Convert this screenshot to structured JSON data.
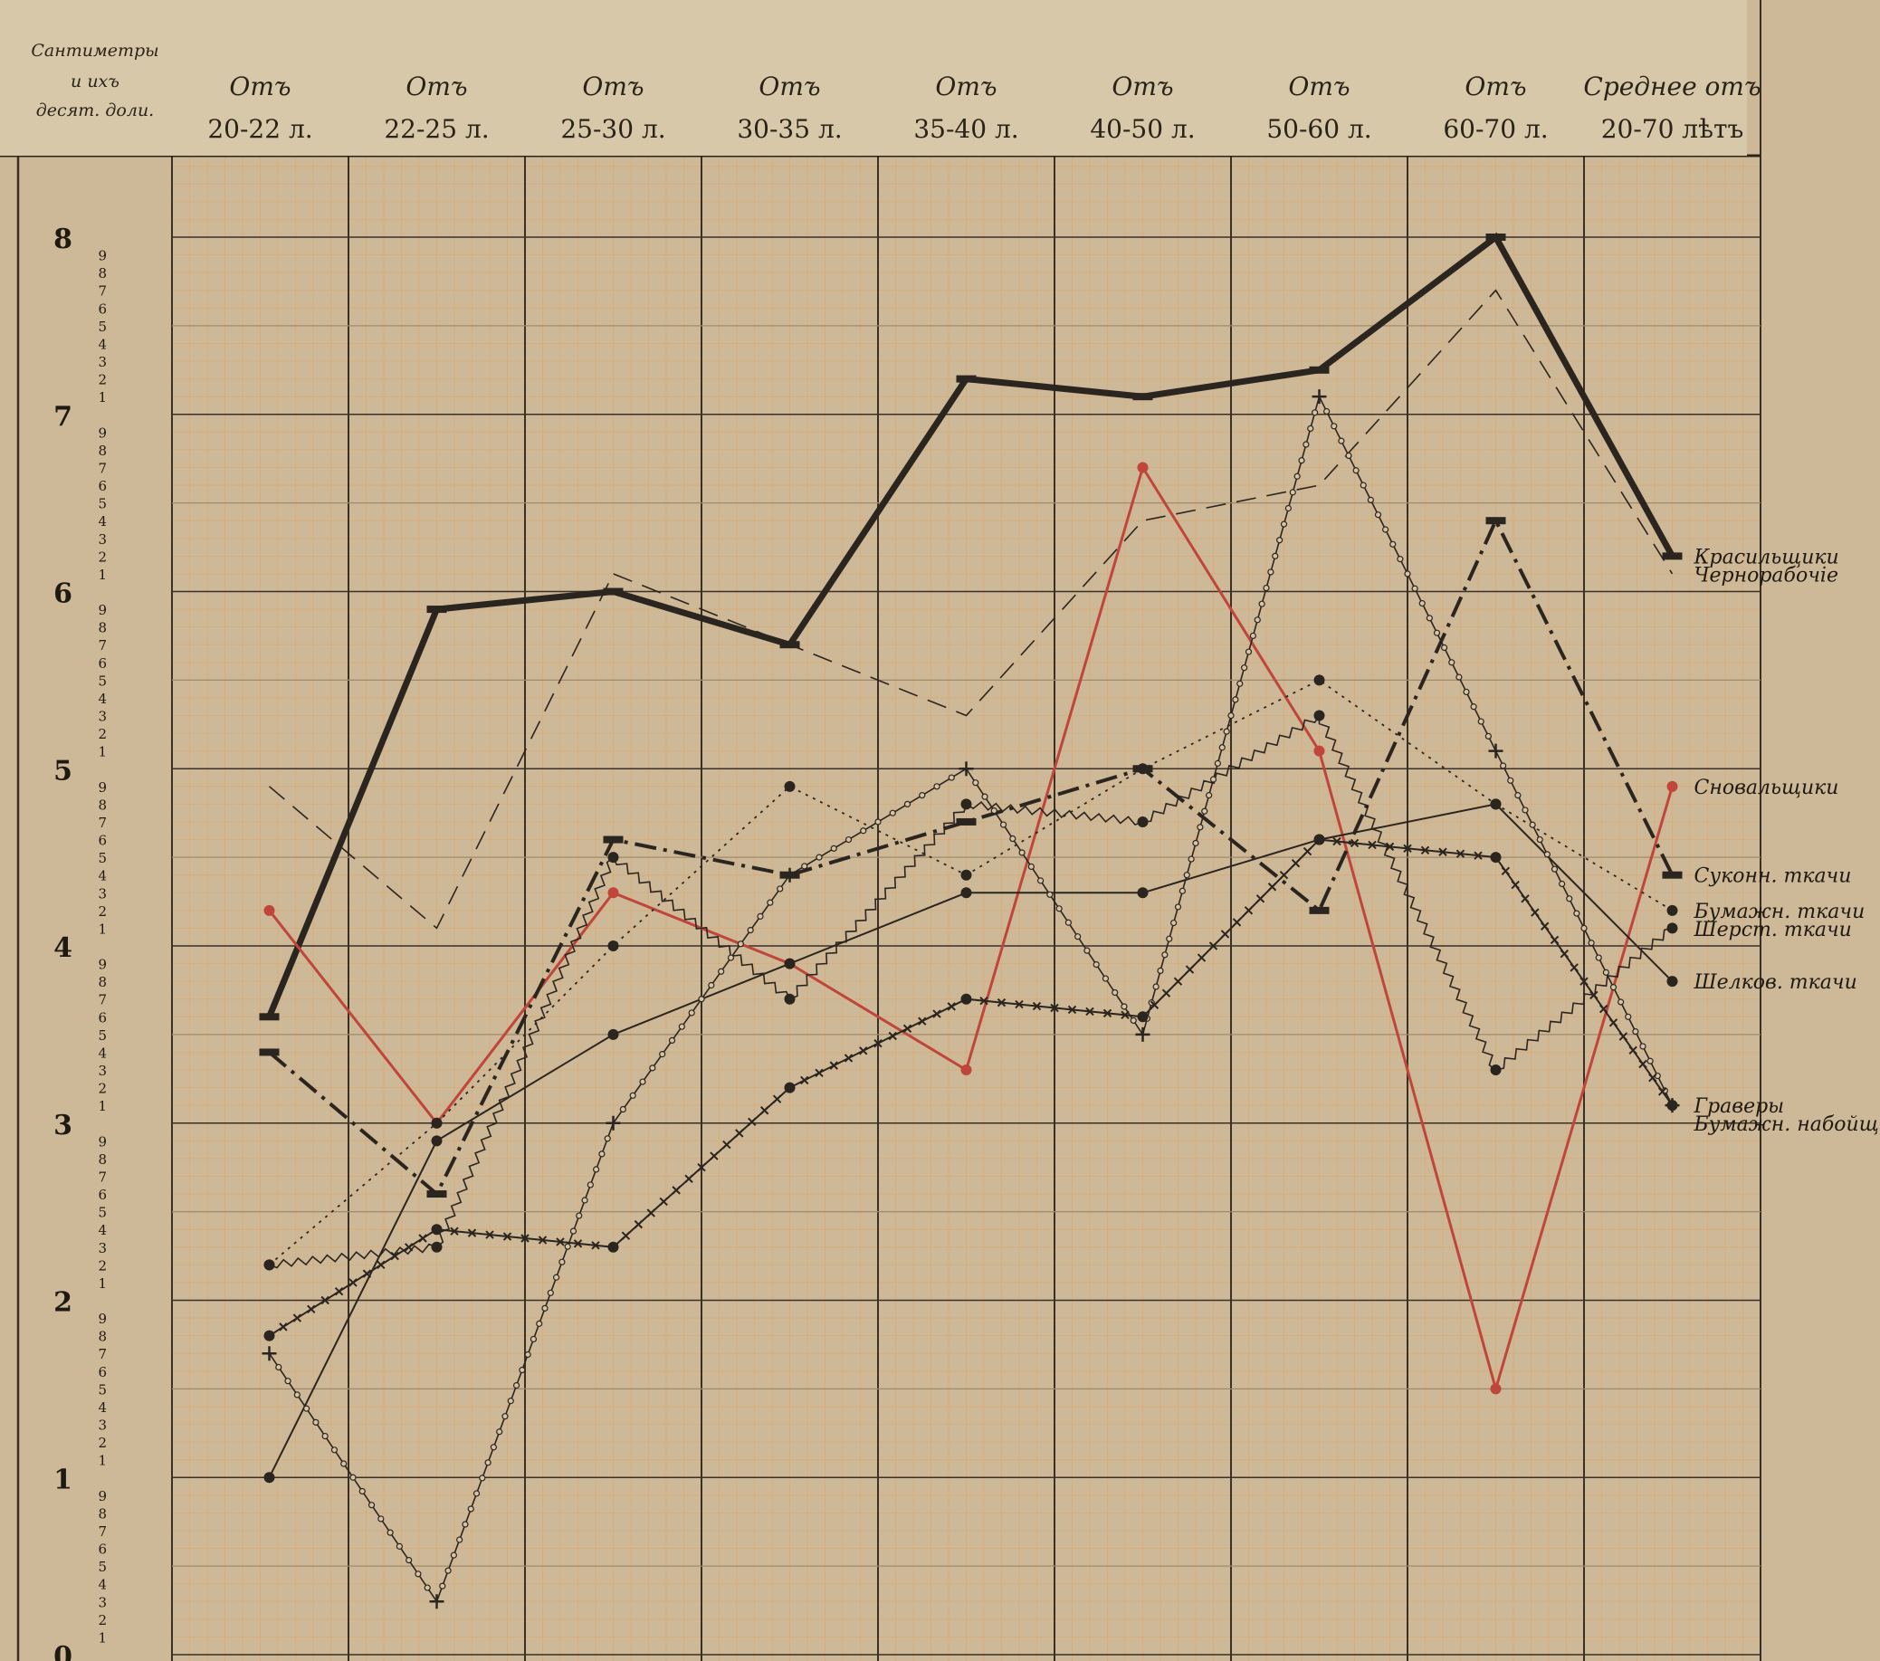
{
  "chart_data": {
    "type": "line",
    "header": {
      "y_column": "Сантиметры и ихъ десят. доли.",
      "age_groups": [
        {
          "top": "Отъ",
          "bottom": "20-22 л."
        },
        {
          "top": "Отъ",
          "bottom": "22-25 л."
        },
        {
          "top": "Отъ",
          "bottom": "25-30 л."
        },
        {
          "top": "Отъ",
          "bottom": "30-35 л."
        },
        {
          "top": "Отъ",
          "bottom": "35-40 л."
        },
        {
          "top": "Отъ",
          "bottom": "40-50 л."
        },
        {
          "top": "Отъ",
          "bottom": "50-60 л."
        },
        {
          "top": "Отъ",
          "bottom": "60-70 л."
        },
        {
          "top": "Среднее отъ",
          "bottom": "20-70 лѣтъ"
        }
      ]
    },
    "categories": [
      "20-22",
      "22-25",
      "25-30",
      "30-35",
      "35-40",
      "40-50",
      "50-60",
      "60-70",
      "20-70"
    ],
    "y_major_ticks": [
      "0",
      "1",
      "2",
      "3",
      "4",
      "5",
      "6",
      "7",
      "8"
    ],
    "y_minor_ticks": [
      "1",
      "2",
      "3",
      "4",
      "5",
      "6",
      "7",
      "8",
      "9"
    ],
    "ylim": [
      0,
      8.3
    ],
    "grid": true,
    "series": [
      {
        "name": "Красильщики",
        "values": [
          3.6,
          5.9,
          6.0,
          5.7,
          7.2,
          7.1,
          7.25,
          8.0,
          6.2
        ],
        "color": "#2b2520",
        "width": 7,
        "dash": "",
        "marker": "dash"
      },
      {
        "name": "Чернорабочiе",
        "values": [
          4.9,
          4.1,
          6.1,
          5.7,
          5.3,
          6.4,
          6.6,
          7.7,
          6.1
        ],
        "color": "#2b2520",
        "width": 1.6,
        "dash": "22,12",
        "marker": "none"
      },
      {
        "name": "Сновальщики",
        "values": [
          4.2,
          3.0,
          4.3,
          3.9,
          3.3,
          6.7,
          5.1,
          1.5,
          4.9
        ],
        "color": "#c0453a",
        "width": 3,
        "dash": "",
        "marker": "dot"
      },
      {
        "name": "Суконн. ткачи",
        "values": [
          3.4,
          2.6,
          4.6,
          4.4,
          4.7,
          5.0,
          4.2,
          6.4,
          4.4
        ],
        "color": "#2b2520",
        "width": 4,
        "dash": "24,8,4,8",
        "marker": "dash"
      },
      {
        "name": "Бумажн. ткачи",
        "values": [
          2.2,
          3.0,
          4.0,
          4.9,
          4.4,
          5.0,
          5.5,
          4.8,
          4.2
        ],
        "color": "#2b2520",
        "width": 1.8,
        "dash": "3,6",
        "marker": "dot"
      },
      {
        "name": "Шерст. ткачи",
        "values": [
          2.2,
          2.3,
          4.5,
          3.7,
          4.8,
          4.7,
          5.3,
          3.3,
          4.1
        ],
        "color": "#2b2520",
        "width": 1.6,
        "dash": "",
        "marker": "dot",
        "style": "wavy"
      },
      {
        "name": "Шелков. ткачи",
        "values": [
          1.0,
          2.9,
          3.5,
          3.9,
          4.3,
          4.3,
          4.6,
          4.8,
          3.8
        ],
        "color": "#2b2520",
        "width": 2,
        "dash": "",
        "marker": "dot"
      },
      {
        "name": "Граверы",
        "values": [
          1.7,
          0.3,
          3.0,
          4.4,
          5.0,
          3.5,
          7.1,
          5.1,
          3.1
        ],
        "color": "#2b2520",
        "width": 1.6,
        "dash": "",
        "marker": "cross",
        "style": "circles"
      },
      {
        "name": "Бумажн. набойщ.",
        "values": [
          1.8,
          2.4,
          2.3,
          3.2,
          3.7,
          3.6,
          4.6,
          4.5,
          3.1
        ],
        "color": "#2b2520",
        "width": 2,
        "dash": "",
        "marker": "dot",
        "style": "xmarks"
      }
    ]
  }
}
